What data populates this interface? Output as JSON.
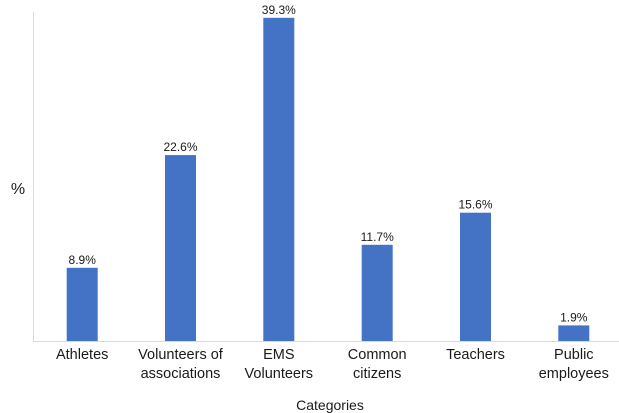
{
  "chart_data": {
    "type": "bar",
    "categories": [
      [
        "Athletes"
      ],
      [
        "Volunteers of",
        "associations"
      ],
      [
        "EMS",
        "Volunteers"
      ],
      [
        "Common",
        "citizens"
      ],
      [
        "Teachers"
      ],
      [
        "Public",
        "employees"
      ]
    ],
    "values": [
      8.9,
      22.6,
      39.3,
      11.7,
      15.6,
      1.9
    ],
    "data_labels": [
      "8.9%",
      "22.6%",
      "39.3%",
      "11.7%",
      "15.6%",
      "1.9%"
    ],
    "xlabel": "Categories",
    "ylabel": "%",
    "ylim": [
      0,
      40
    ],
    "grid": false,
    "bar_color": "#4472C4"
  }
}
